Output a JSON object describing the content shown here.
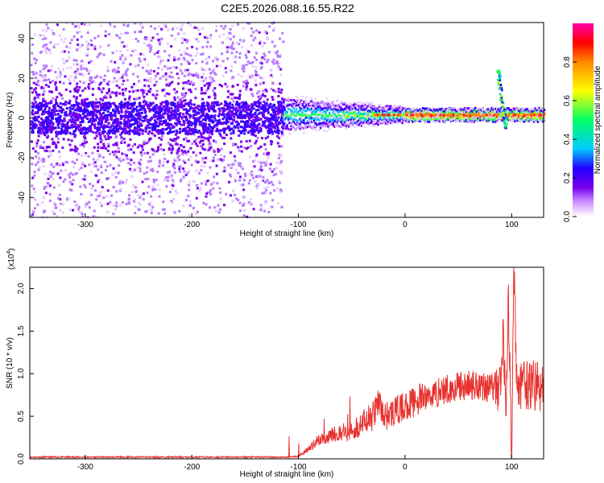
{
  "title": "C2E5.2026.088.16.55.R22",
  "chart_data": [
    {
      "type": "heatmap",
      "xlabel": "Height of straight line (km)",
      "ylabel": "Frequency (Hz)",
      "xlim": [
        -352,
        130
      ],
      "ylim": [
        -50,
        48
      ],
      "x_ticks": [
        -300,
        -200,
        -100,
        0,
        100
      ],
      "y_ticks": [
        -40,
        -20,
        0,
        20,
        40
      ],
      "colorbar": {
        "label": "Normalized spectral amplitude",
        "range": [
          0.0,
          1.0
        ],
        "ticks": [
          "0.0",
          "0.2",
          "0.4",
          "0.6",
          "0.8"
        ],
        "colors": [
          "#ffffff",
          "#cc88ff",
          "#7700ee",
          "#2200ff",
          "#00ccff",
          "#00ff66",
          "#ffff00",
          "#ff8800",
          "#ff0000",
          "#ff00aa"
        ]
      },
      "features": [
        {
          "x_range": [
            -352,
            -115
          ],
          "freq_center": 0,
          "amplitude": 0.15,
          "spread": 12,
          "description": ""
        },
        {
          "x_range": [
            -115,
            0
          ],
          "freq_center": 1,
          "amplitude": 0.5
        },
        {
          "x_range": [
            0,
            130
          ],
          "freq_center": 2,
          "amplitude": 0.95
        },
        {
          "x": 95,
          "freq_range": [
            -5,
            25
          ],
          "amplitude": 0.6
        }
      ]
    },
    {
      "type": "line",
      "xlabel": "Height of straight line (km)",
      "ylabel": "SNR (10 * v/v)",
      "scale_label": "(x10",
      "scale_exp": "4",
      "scale_close": ")",
      "xlim": [
        -352,
        130
      ],
      "ylim": [
        0,
        2.25
      ],
      "x_ticks": [
        -300,
        -200,
        -100,
        0,
        100
      ],
      "y_ticks": [
        "0.0",
        "0.5",
        "1.0",
        "1.5",
        "2.0"
      ],
      "line_color": "#e8322e",
      "series": [
        {
          "x": [
            -352,
            -250,
            -200,
            -150,
            -110,
            -100,
            -90,
            -80,
            -70,
            -60,
            -50,
            -40,
            -30,
            -25,
            -20,
            -10,
            0,
            10,
            20,
            30,
            40,
            50,
            60,
            65,
            70,
            75,
            80,
            85,
            90,
            92,
            95,
            97,
            100,
            102,
            105,
            110,
            120,
            130
          ],
          "y": [
            0.02,
            0.02,
            0.02,
            0.02,
            0.02,
            0.03,
            0.12,
            0.22,
            0.28,
            0.3,
            0.33,
            0.42,
            0.5,
            0.68,
            0.5,
            0.55,
            0.62,
            0.68,
            0.73,
            0.78,
            0.82,
            0.85,
            0.86,
            0.87,
            0.88,
            0.85,
            0.86,
            0.84,
            0.88,
            1.5,
            0.6,
            1.85,
            0.1,
            2.25,
            0.86,
            0.86,
            0.87,
            0.82
          ]
        }
      ]
    }
  ]
}
